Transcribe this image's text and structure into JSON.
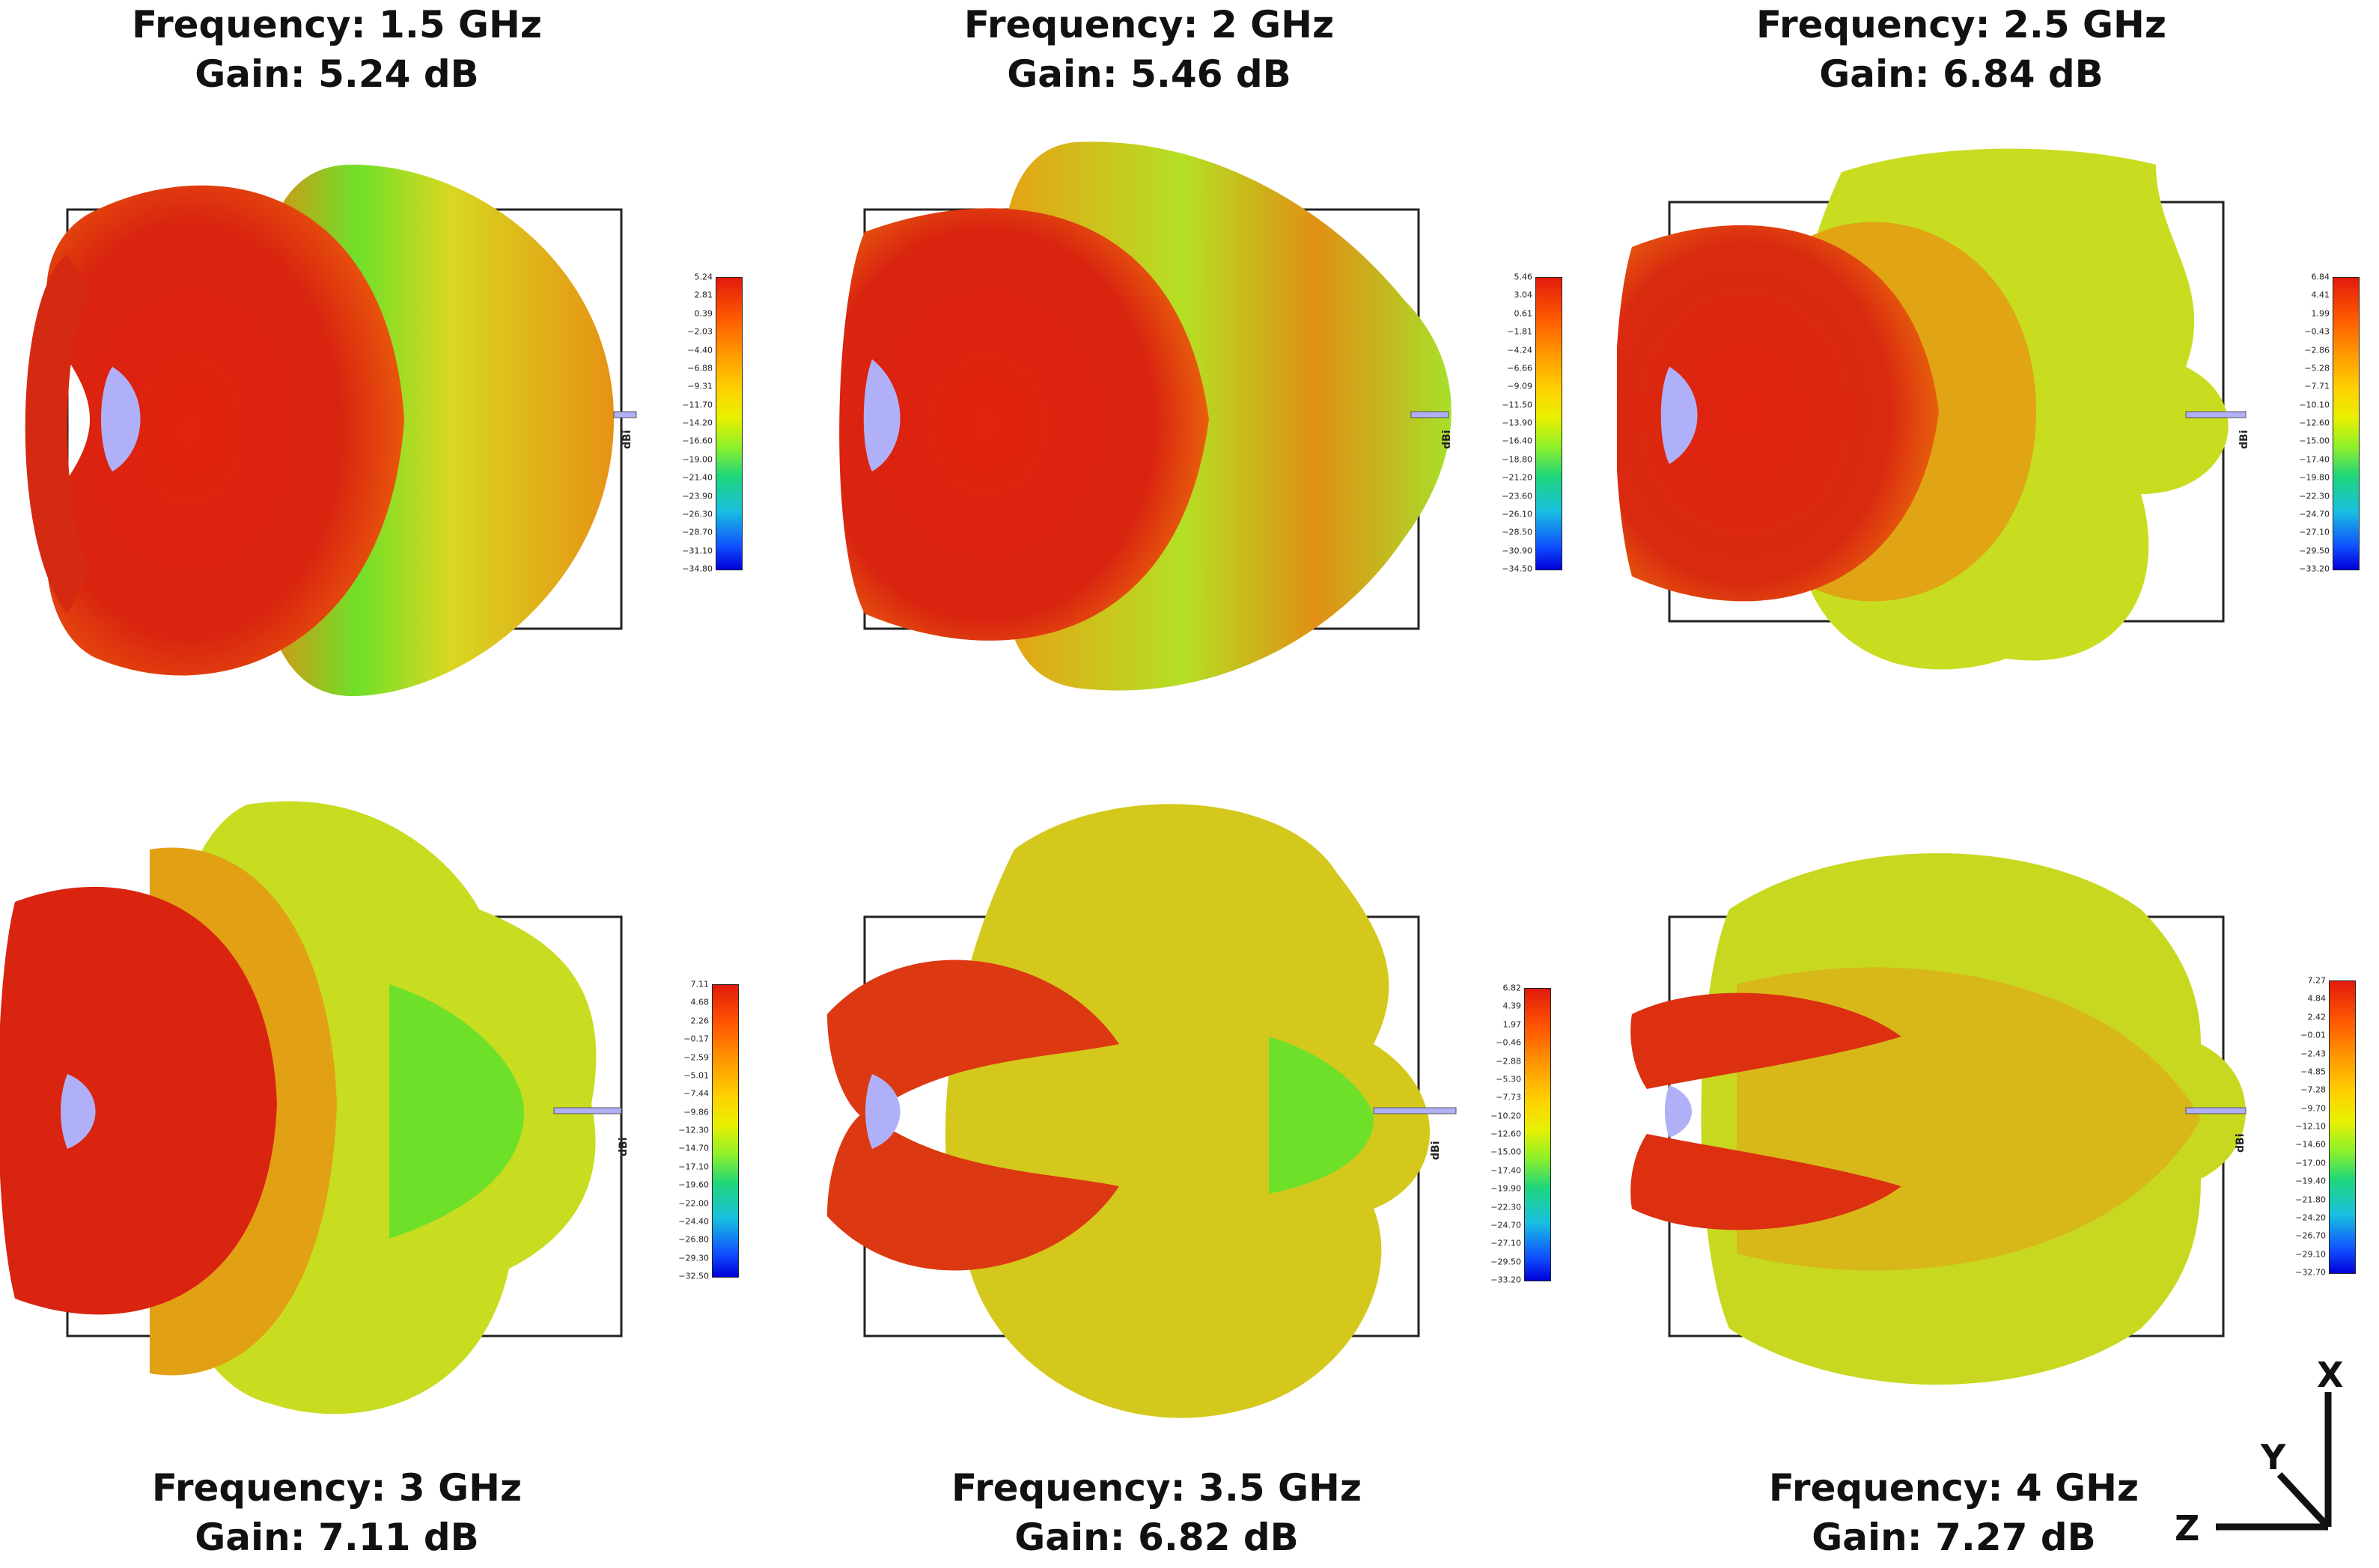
{
  "panels": [
    {
      "id": "p1",
      "caption_top": true,
      "frequency": "Frequency: 1.5 GHz",
      "gain": "Gain: 5.24 dB",
      "colorbar": {
        "unit": "dBi",
        "ticks": [
          "5.24",
          "2.81",
          "0.39",
          "−2.03",
          "−4.40",
          "−6.88",
          "−9.31",
          "−11.70",
          "−14.20",
          "−16.60",
          "−19.00",
          "−21.40",
          "−23.90",
          "−26.30",
          "−28.70",
          "−31.10",
          "−34.80"
        ]
      }
    },
    {
      "id": "p2",
      "caption_top": true,
      "frequency": "Frequency: 2 GHz",
      "gain": "Gain: 5.46 dB",
      "colorbar": {
        "unit": "dBi",
        "ticks": [
          "5.46",
          "3.04",
          "0.61",
          "−1.81",
          "−4.24",
          "−6.66",
          "−9.09",
          "−11.50",
          "−13.90",
          "−16.40",
          "−18.80",
          "−21.20",
          "−23.60",
          "−26.10",
          "−28.50",
          "−30.90",
          "−34.50"
        ]
      }
    },
    {
      "id": "p3",
      "caption_top": true,
      "frequency": "Frequency: 2.5 GHz",
      "gain": "Gain: 6.84 dB",
      "colorbar": {
        "unit": "dBi",
        "ticks": [
          "6.84",
          "4.41",
          "1.99",
          "−0.43",
          "−2.86",
          "−5.28",
          "−7.71",
          "−10.10",
          "−12.60",
          "−15.00",
          "−17.40",
          "−19.80",
          "−22.30",
          "−24.70",
          "−27.10",
          "−29.50",
          "−33.20"
        ]
      }
    },
    {
      "id": "p4",
      "caption_top": false,
      "frequency": "Frequency: 3 GHz",
      "gain": "Gain: 7.11 dB",
      "colorbar": {
        "unit": "dBi",
        "ticks": [
          "7.11",
          "4.68",
          "2.26",
          "−0.17",
          "−2.59",
          "−5.01",
          "−7.44",
          "−9.86",
          "−12.30",
          "−14.70",
          "−17.10",
          "−19.60",
          "−22.00",
          "−24.40",
          "−26.80",
          "−29.30",
          "−32.50"
        ]
      }
    },
    {
      "id": "p5",
      "caption_top": false,
      "frequency": "Frequency: 3.5 GHz",
      "gain": "Gain: 6.82 dB",
      "colorbar": {
        "unit": "dBi",
        "ticks": [
          "6.82",
          "4.39",
          "1.97",
          "−0.46",
          "−2.88",
          "−5.30",
          "−7.73",
          "−10.20",
          "−12.60",
          "−15.00",
          "−17.40",
          "−19.90",
          "−22.30",
          "−24.70",
          "−27.10",
          "−29.50",
          "−33.20"
        ]
      }
    },
    {
      "id": "p6",
      "caption_top": false,
      "frequency": "Frequency: 4 GHz",
      "gain": "Gain: 7.27 dB",
      "colorbar": {
        "unit": "dBi",
        "ticks": [
          "7.27",
          "4.84",
          "2.42",
          "−0.01",
          "−2.43",
          "−4.85",
          "−7.28",
          "−9.70",
          "−12.10",
          "−14.60",
          "−17.00",
          "−19.40",
          "−21.80",
          "−24.20",
          "−26.70",
          "−29.10",
          "−32.70"
        ]
      }
    }
  ],
  "axes": {
    "x": "X",
    "y": "Y",
    "z": "Z"
  },
  "colors": {
    "red": "#e0220e",
    "orange": "#f07a10",
    "yellow": "#d8d820",
    "green": "#6fe02a",
    "feed": "#b0b0f8"
  }
}
